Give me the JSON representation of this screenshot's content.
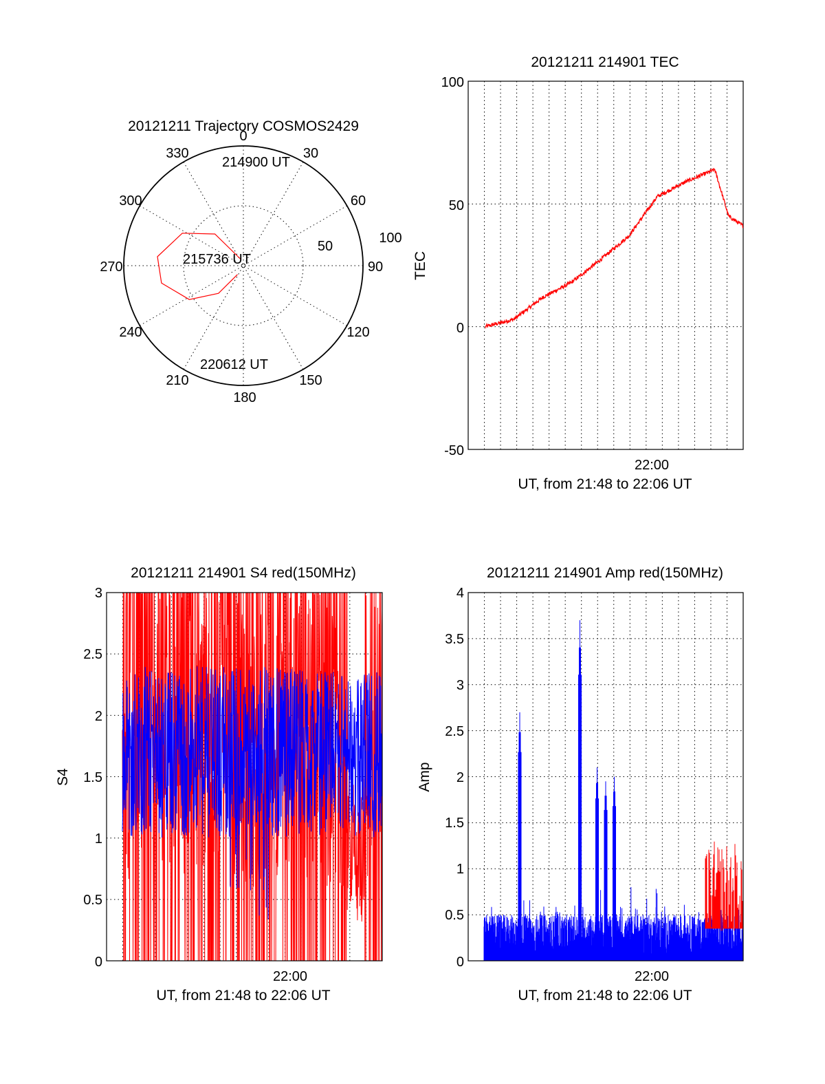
{
  "chart_data": [
    {
      "type": "polar",
      "title": "20121211 Trajectory COSMOS2429",
      "azimuth_labels": [
        "0",
        "30",
        "60",
        "90",
        "120",
        "150",
        "180",
        "210",
        "240",
        "270",
        "300",
        "330"
      ],
      "radial_labels": [
        "50",
        "100"
      ],
      "trajectory": {
        "color": "#ff0000",
        "points": [
          {
            "az": 339,
            "el": 85
          },
          {
            "az": 318,
            "el": 58
          },
          {
            "az": 298,
            "el": 38
          },
          {
            "az": 276,
            "el": 25
          },
          {
            "az": 258,
            "el": 27
          },
          {
            "az": 238,
            "el": 42
          },
          {
            "az": 222,
            "el": 62
          },
          {
            "az": 214,
            "el": 82
          }
        ]
      },
      "annotations": [
        "214900 UT",
        "215736 UT",
        "220612 UT"
      ]
    },
    {
      "type": "line",
      "title": "20121211 214901 TEC",
      "ylabel": "TEC",
      "xlabel": "UT, from 21:48 to 22:06 UT",
      "xtick_label": "22:00",
      "ylim": [
        -50,
        100
      ],
      "yticks": [
        "100",
        "50",
        "0",
        "-50"
      ],
      "series": [
        {
          "color": "#ff0000",
          "x": [
            21.8,
            21.833,
            21.867,
            21.9,
            21.933,
            21.967,
            22.0,
            22.033,
            22.067,
            22.083,
            22.1
          ],
          "values": [
            0,
            3,
            12,
            18,
            27,
            37,
            53,
            59,
            64,
            45,
            41
          ]
        }
      ]
    },
    {
      "type": "line",
      "title": "20121211 214901 S4 red(150MHz)",
      "ylabel": "S4",
      "xlabel": "UT, from 21:48 to 22:06 UT",
      "xtick_label": "22:00",
      "ylim": [
        0,
        3
      ],
      "yticks": [
        "3",
        "2.5",
        "2",
        "1.5",
        "1",
        "0.5",
        "0"
      ],
      "series": [
        {
          "color": "#ff0000",
          "style": "noisy, frequently saturating 0–3"
        },
        {
          "color": "#0000ff",
          "style": "noisy, mean about 1.7"
        }
      ]
    },
    {
      "type": "line",
      "title": "20121211 214901 Amp red(150MHz)",
      "ylabel": "Amp",
      "xlabel": "UT, from 21:48 to 22:06 UT",
      "xtick_label": "22:00",
      "ylim": [
        0,
        4
      ],
      "yticks": [
        "4",
        "3.5",
        "3",
        "2.5",
        "2",
        "1.5",
        "1",
        "0.5",
        "0"
      ],
      "series": [
        {
          "color": "#0000ff",
          "spikes": [
            {
              "x": 21.84,
              "value": 2.7
            },
            {
              "x": 21.91,
              "value": 3.7
            },
            {
              "x": 21.93,
              "value": 2.1
            },
            {
              "x": 21.94,
              "value": 1.95
            },
            {
              "x": 21.95,
              "value": 2.0
            }
          ]
        },
        {
          "color": "#ff0000",
          "burst": {
            "x": 22.08,
            "value": 1.3
          }
        }
      ]
    }
  ]
}
